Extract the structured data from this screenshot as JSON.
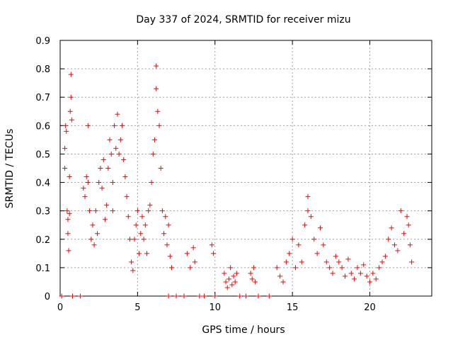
{
  "chart_data": {
    "type": "scatter",
    "title": "Day 337 of 2024, SRMTID for receiver mizu",
    "xlabel": "GPS time / hours",
    "ylabel": "SRMTID / TECUs",
    "xlim": [
      0,
      24
    ],
    "ylim": [
      0,
      0.9
    ],
    "xticks": [
      0,
      5,
      10,
      15,
      20
    ],
    "yticks": [
      0,
      0.1,
      0.2,
      0.3,
      0.4,
      0.5,
      0.6,
      0.7,
      0.8,
      0.9
    ],
    "ytick_labels": [
      "0",
      "0.1",
      "0.2",
      "0.3",
      "0.4",
      "0.5",
      "0.6",
      "0.7",
      "0.8",
      "0.9"
    ],
    "grid": true,
    "marker": "plus",
    "color": "#ff0000",
    "series": [
      {
        "name": "mizu",
        "points": [
          [
            0.1,
            0.0
          ],
          [
            0.3,
            0.52
          ],
          [
            0.3,
            0.45
          ],
          [
            0.35,
            0.6
          ],
          [
            0.4,
            0.58
          ],
          [
            0.45,
            0.3
          ],
          [
            0.5,
            0.27
          ],
          [
            0.5,
            0.22
          ],
          [
            0.55,
            0.16
          ],
          [
            0.6,
            0.29
          ],
          [
            0.6,
            0.42
          ],
          [
            0.65,
            0.65
          ],
          [
            0.7,
            0.7
          ],
          [
            0.7,
            0.78
          ],
          [
            0.75,
            0.62
          ],
          [
            0.8,
            0.0
          ],
          [
            1.3,
            0.0
          ],
          [
            1.5,
            0.38
          ],
          [
            1.6,
            0.35
          ],
          [
            1.7,
            0.42
          ],
          [
            1.8,
            0.6
          ],
          [
            1.8,
            0.4
          ],
          [
            1.9,
            0.3
          ],
          [
            2.0,
            0.2
          ],
          [
            2.1,
            0.25
          ],
          [
            2.2,
            0.18
          ],
          [
            2.3,
            0.3
          ],
          [
            2.4,
            0.22
          ],
          [
            2.5,
            0.4
          ],
          [
            2.6,
            0.45
          ],
          [
            2.7,
            0.38
          ],
          [
            2.8,
            0.48
          ],
          [
            2.9,
            0.27
          ],
          [
            3.0,
            0.32
          ],
          [
            3.1,
            0.45
          ],
          [
            3.2,
            0.55
          ],
          [
            3.3,
            0.5
          ],
          [
            3.4,
            0.4
          ],
          [
            3.4,
            0.3
          ],
          [
            3.5,
            0.6
          ],
          [
            3.6,
            0.52
          ],
          [
            3.7,
            0.64
          ],
          [
            3.8,
            0.5
          ],
          [
            3.9,
            0.55
          ],
          [
            4.0,
            0.6
          ],
          [
            4.1,
            0.48
          ],
          [
            4.2,
            0.42
          ],
          [
            4.3,
            0.35
          ],
          [
            4.4,
            0.28
          ],
          [
            4.5,
            0.2
          ],
          [
            4.6,
            0.12
          ],
          [
            4.7,
            0.09
          ],
          [
            4.8,
            0.2
          ],
          [
            4.9,
            0.25
          ],
          [
            5.0,
            0.3
          ],
          [
            5.1,
            0.15
          ],
          [
            5.2,
            0.22
          ],
          [
            5.3,
            0.28
          ],
          [
            5.4,
            0.2
          ],
          [
            5.5,
            0.25
          ],
          [
            5.6,
            0.15
          ],
          [
            5.7,
            0.3
          ],
          [
            5.8,
            0.32
          ],
          [
            5.9,
            0.4
          ],
          [
            6.0,
            0.5
          ],
          [
            6.1,
            0.55
          ],
          [
            6.2,
            0.81
          ],
          [
            6.2,
            0.73
          ],
          [
            6.3,
            0.65
          ],
          [
            6.4,
            0.6
          ],
          [
            6.5,
            0.45
          ],
          [
            6.6,
            0.3
          ],
          [
            6.7,
            0.22
          ],
          [
            6.8,
            0.28
          ],
          [
            6.9,
            0.18
          ],
          [
            7.0,
            0.25
          ],
          [
            7.1,
            0.14
          ],
          [
            7.2,
            0.1
          ],
          [
            7.0,
            0.0
          ],
          [
            7.5,
            0.0
          ],
          [
            8.0,
            0.0
          ],
          [
            8.2,
            0.15
          ],
          [
            8.4,
            0.1
          ],
          [
            8.6,
            0.17
          ],
          [
            8.7,
            0.12
          ],
          [
            9.0,
            0.0
          ],
          [
            9.3,
            0.0
          ],
          [
            9.8,
            0.18
          ],
          [
            9.9,
            0.15
          ],
          [
            10.0,
            0.0
          ],
          [
            10.6,
            0.08
          ],
          [
            10.7,
            0.05
          ],
          [
            10.8,
            0.03
          ],
          [
            10.9,
            0.06
          ],
          [
            11.0,
            0.1
          ],
          [
            11.1,
            0.04
          ],
          [
            11.2,
            0.07
          ],
          [
            11.3,
            0.05
          ],
          [
            11.4,
            0.08
          ],
          [
            11.6,
            0.0
          ],
          [
            12.0,
            0.0
          ],
          [
            12.3,
            0.08
          ],
          [
            12.4,
            0.06
          ],
          [
            12.5,
            0.1
          ],
          [
            12.6,
            0.05
          ],
          [
            12.8,
            0.0
          ],
          [
            13.5,
            0.0
          ],
          [
            14.0,
            0.1
          ],
          [
            14.2,
            0.07
          ],
          [
            14.4,
            0.05
          ],
          [
            14.6,
            0.12
          ],
          [
            14.8,
            0.15
          ],
          [
            15.0,
            0.2
          ],
          [
            15.2,
            0.1
          ],
          [
            15.4,
            0.18
          ],
          [
            15.6,
            0.12
          ],
          [
            15.8,
            0.25
          ],
          [
            16.0,
            0.3
          ],
          [
            16.0,
            0.35
          ],
          [
            16.2,
            0.28
          ],
          [
            16.4,
            0.2
          ],
          [
            16.6,
            0.15
          ],
          [
            16.8,
            0.24
          ],
          [
            17.0,
            0.18
          ],
          [
            17.2,
            0.12
          ],
          [
            17.4,
            0.1
          ],
          [
            17.6,
            0.08
          ],
          [
            17.8,
            0.14
          ],
          [
            18.0,
            0.12
          ],
          [
            18.2,
            0.1
          ],
          [
            18.4,
            0.07
          ],
          [
            18.6,
            0.13
          ],
          [
            18.8,
            0.08
          ],
          [
            19.0,
            0.06
          ],
          [
            19.2,
            0.1
          ],
          [
            19.4,
            0.08
          ],
          [
            19.6,
            0.11
          ],
          [
            19.8,
            0.07
          ],
          [
            20.0,
            0.05
          ],
          [
            20.2,
            0.08
          ],
          [
            20.4,
            0.06
          ],
          [
            20.6,
            0.1
          ],
          [
            20.8,
            0.12
          ],
          [
            21.0,
            0.14
          ],
          [
            21.2,
            0.2
          ],
          [
            21.4,
            0.24
          ],
          [
            21.6,
            0.18
          ],
          [
            21.8,
            0.16
          ],
          [
            22.0,
            0.3
          ],
          [
            22.2,
            0.22
          ],
          [
            22.4,
            0.28
          ],
          [
            22.5,
            0.25
          ],
          [
            22.6,
            0.18
          ],
          [
            22.7,
            0.12
          ]
        ]
      }
    ]
  }
}
